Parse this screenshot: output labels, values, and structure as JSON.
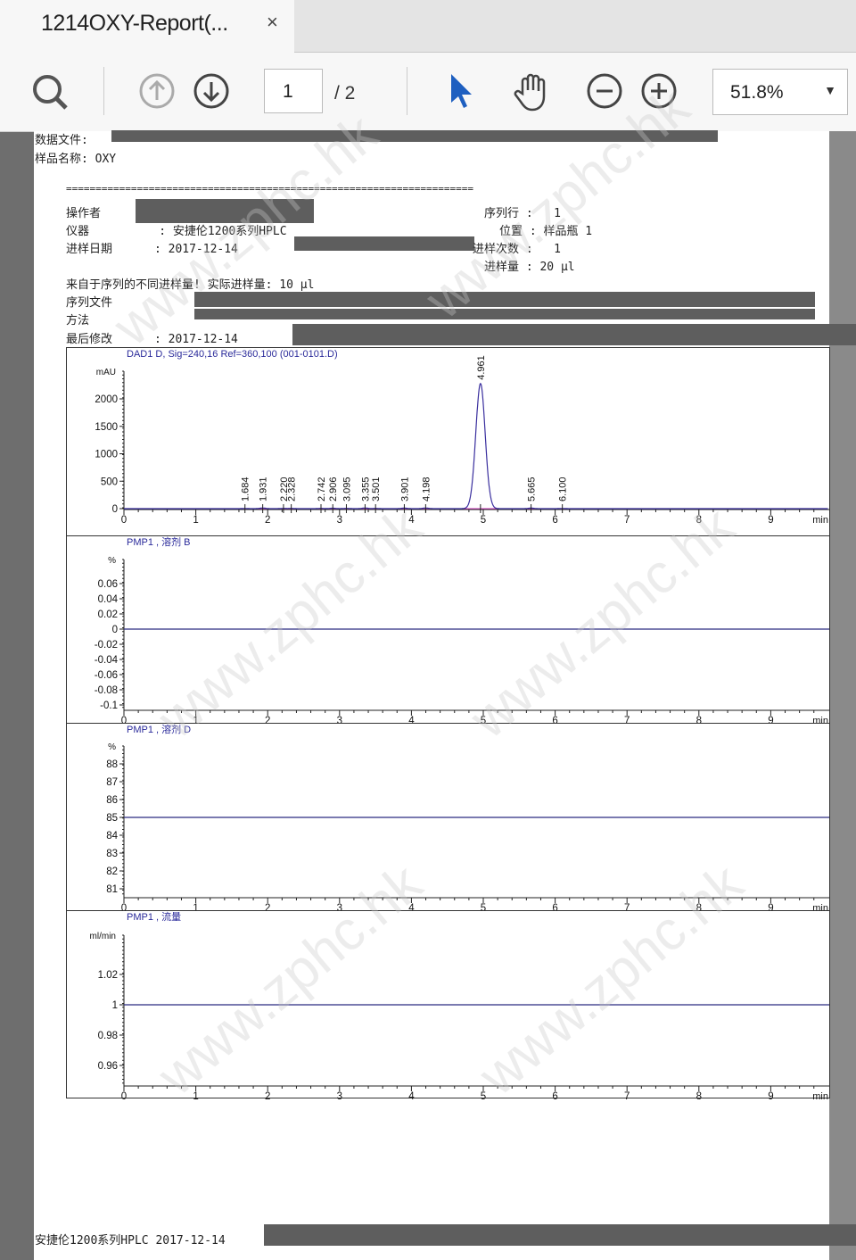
{
  "tab": {
    "title": "1214OXY-Report(...",
    "close": "×"
  },
  "toolbar": {
    "search_icon": "search-icon",
    "page_current": "1",
    "page_total": "/ 2",
    "zoom": "51.8%",
    "zoom_arrow": "▼"
  },
  "report": {
    "data_file_label": "数据文件:",
    "sample_name": "样品名称: OXY",
    "divider": "=====================================================================",
    "operator_label": "操作者",
    "instrument": "仪器          : 安捷伦1200系列HPLC",
    "inject_date": "进样日期      : 2017-12-14",
    "seq_line": "序列行 :   1",
    "position": "位置 : 样品瓶 1",
    "inj_count": "进样次数 :   1",
    "inj_volume": "进样量 : 20 µl",
    "note": "来自于序列的不同进样量! 实际进样量: 10 µl",
    "seq_file_label": "序列文件",
    "method_label": "方法",
    "last_modified": "最后修改      : 2017-12-14",
    "footer": "安捷伦1200系列HPLC 2017-12-14"
  },
  "watermark": "www.zphc.hk",
  "chart_data": [
    {
      "type": "line",
      "title": "DAD1 D, Sig=240,16 Ref=360,100 (001-0101.D)",
      "ylabel": "mAU",
      "xlabel": "min",
      "xlim": [
        0,
        9.8
      ],
      "ylim": [
        -100,
        2500
      ],
      "yticks": [
        0,
        500,
        1000,
        1500,
        2000
      ],
      "xticks": [
        0,
        1,
        2,
        3,
        4,
        5,
        6,
        7,
        8,
        9
      ],
      "peaks": [
        {
          "rt": 1.684,
          "height": 3
        },
        {
          "rt": 1.931,
          "height": 12
        },
        {
          "rt": 2.22,
          "height": 5
        },
        {
          "rt": 2.328,
          "height": 5
        },
        {
          "rt": 2.742,
          "height": 5
        },
        {
          "rt": 2.906,
          "height": 8
        },
        {
          "rt": 3.095,
          "height": 5
        },
        {
          "rt": 3.355,
          "height": 12
        },
        {
          "rt": 3.501,
          "height": 5
        },
        {
          "rt": 3.901,
          "height": 10
        },
        {
          "rt": 4.198,
          "height": 12
        },
        {
          "rt": 4.961,
          "height": 2280
        },
        {
          "rt": 5.665,
          "height": 10
        },
        {
          "rt": 6.1,
          "height": 4
        }
      ],
      "peak_labels": [
        "1.684",
        "1.931",
        "2.220",
        "2.328",
        "2.742",
        "2.906",
        "3.095",
        "3.355",
        "3.501",
        "3.901",
        "4.198",
        "4.961",
        "5.665",
        "6.100"
      ],
      "line_color": "#3a2f9e",
      "baseline_color": "#d040c0"
    },
    {
      "type": "line",
      "title": "PMP1 , 溶剂 B",
      "ylabel": "%",
      "xlabel": "min",
      "xlim": [
        0,
        9.8
      ],
      "ylim": [
        -0.1,
        0.08
      ],
      "yticks": [
        "0.06",
        "0.04",
        "0.02",
        "0",
        "-0.02",
        "-0.04",
        "-0.06",
        "-0.08",
        "-0.1"
      ],
      "xticks": [
        0,
        1,
        2,
        3,
        4,
        5,
        6,
        7,
        8,
        9
      ],
      "value": 0,
      "line_color": "#2a2a80"
    },
    {
      "type": "line",
      "title": "PMP1 , 溶剂 D",
      "ylabel": "%",
      "xlabel": "min",
      "xlim": [
        0,
        9.8
      ],
      "ylim": [
        80.6,
        89
      ],
      "yticks": [
        "88",
        "87",
        "86",
        "85",
        "84",
        "83",
        "82",
        "81"
      ],
      "xticks": [
        0,
        1,
        2,
        3,
        4,
        5,
        6,
        7,
        8,
        9
      ],
      "value": 85,
      "line_color": "#2a2a80"
    },
    {
      "type": "line",
      "title": "PMP1 , 流量",
      "ylabel": "ml/min",
      "xlabel": "min",
      "xlim": [
        0,
        9.8
      ],
      "ylim": [
        0.94,
        1.04
      ],
      "yticks": [
        "1.02",
        "1",
        "0.98",
        "0.96"
      ],
      "xticks": [
        0,
        1,
        2,
        3,
        4,
        5,
        6,
        7,
        8,
        9
      ],
      "value": 1,
      "line_color": "#2a2a80"
    }
  ]
}
